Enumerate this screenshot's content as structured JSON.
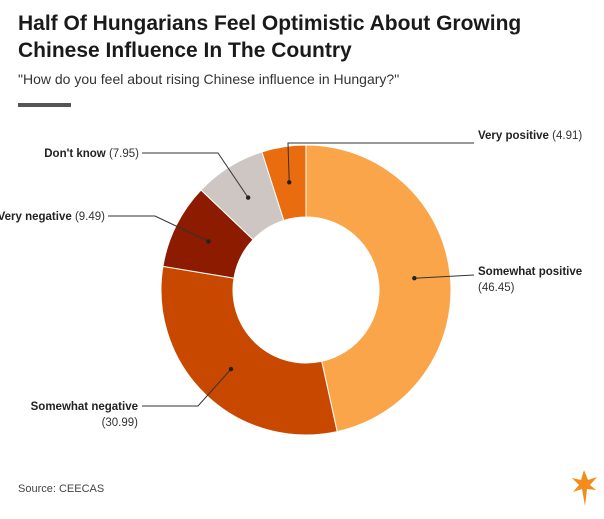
{
  "title": "Half Of Hungarians Feel Optimistic About Growing Chinese Influence In The Country",
  "subtitle": "\"How do you feel about rising Chinese influence in Hungary?\"",
  "source": "Source: CEECAS",
  "logo_icon": "flame-torch-logo-icon",
  "chart_data": {
    "type": "pie",
    "donut": true,
    "slices": [
      {
        "label": "Somewhat positive",
        "value": 46.45,
        "color": "#fba54a"
      },
      {
        "label": "Somewhat negative",
        "value": 30.99,
        "color": "#c84800"
      },
      {
        "label": "Very negative",
        "value": 9.49,
        "color": "#8c1b00"
      },
      {
        "label": "Don't know",
        "value": 7.95,
        "color": "#cdc6c3"
      },
      {
        "label": "Very positive",
        "value": 4.91,
        "color": "#e96c0e"
      }
    ]
  }
}
